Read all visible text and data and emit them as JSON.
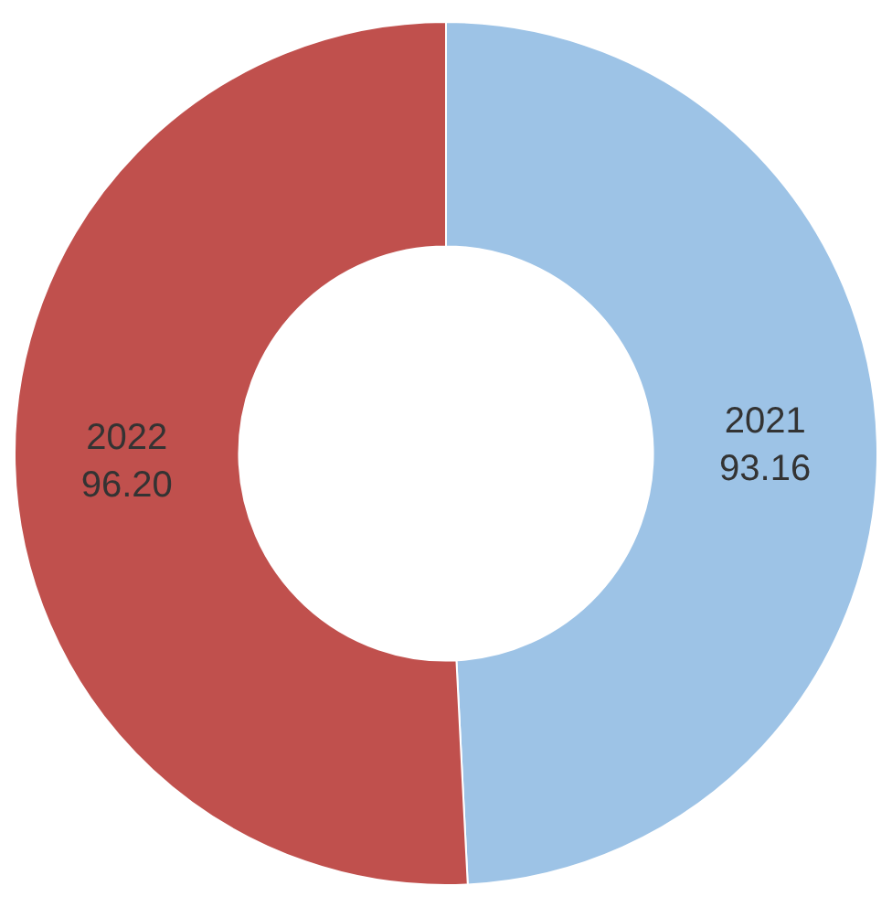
{
  "chart_data": {
    "type": "donut",
    "categories": [
      "2021",
      "2022"
    ],
    "values": [
      93.16,
      96.2
    ],
    "value_labels": [
      "93.16",
      "96.20"
    ],
    "colors": [
      "#9dc3e6",
      "#c0504d"
    ],
    "legend": false
  }
}
